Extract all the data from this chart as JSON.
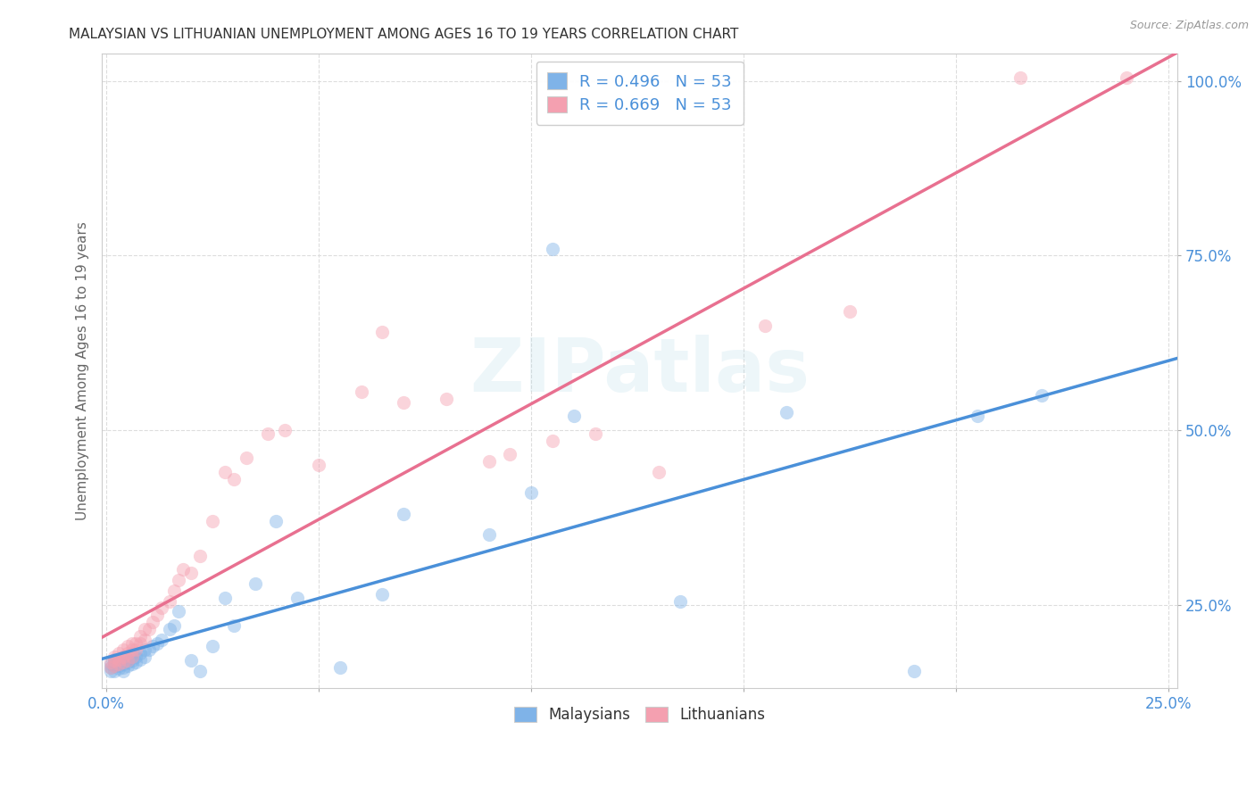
{
  "title": "MALAYSIAN VS LITHUANIAN UNEMPLOYMENT AMONG AGES 16 TO 19 YEARS CORRELATION CHART",
  "source": "Source: ZipAtlas.com",
  "ylabel": "Unemployment Among Ages 16 to 19 years",
  "xlim": [
    -0.001,
    0.252
  ],
  "ylim": [
    0.13,
    1.04
  ],
  "xtick_positions": [
    0.0,
    0.05,
    0.1,
    0.15,
    0.2,
    0.25
  ],
  "xtick_labels": [
    "0.0%",
    "",
    "",
    "",
    "",
    "25.0%"
  ],
  "ytick_positions": [
    0.25,
    0.5,
    0.75,
    1.0
  ],
  "ytick_labels": [
    "25.0%",
    "50.0%",
    "75.0%",
    "100.0%"
  ],
  "legend_label_blue_r": "R = 0.496",
  "legend_label_blue_n": "N = 53",
  "legend_label_pink_r": "R = 0.669",
  "legend_label_pink_n": "N = 53",
  "legend_label_malaysians": "Malaysians",
  "legend_label_lithuanians": "Lithuanians",
  "blue_color": "#7fb3e8",
  "pink_color": "#f4a0b0",
  "blue_line_color": "#4a90d9",
  "pink_line_color": "#e87090",
  "legend_text_color": "#4a90d9",
  "title_color": "#333333",
  "grid_color": "#dddddd",
  "background_color": "#ffffff",
  "watermark": "ZIPatlas",
  "marker_size": 120,
  "marker_alpha": 0.45,
  "line_width": 2.5,
  "blue_scatter_x": [
    0.001,
    0.001,
    0.001,
    0.002,
    0.002,
    0.002,
    0.002,
    0.003,
    0.003,
    0.003,
    0.004,
    0.004,
    0.004,
    0.004,
    0.005,
    0.005,
    0.005,
    0.006,
    0.006,
    0.006,
    0.007,
    0.007,
    0.008,
    0.008,
    0.009,
    0.009,
    0.01,
    0.011,
    0.012,
    0.013,
    0.015,
    0.016,
    0.017,
    0.02,
    0.022,
    0.025,
    0.028,
    0.03,
    0.035,
    0.04,
    0.045,
    0.055,
    0.065,
    0.07,
    0.09,
    0.1,
    0.105,
    0.11,
    0.135,
    0.16,
    0.19,
    0.205,
    0.22
  ],
  "blue_scatter_y": [
    0.155,
    0.16,
    0.165,
    0.155,
    0.162,
    0.168,
    0.172,
    0.158,
    0.163,
    0.17,
    0.155,
    0.16,
    0.165,
    0.175,
    0.162,
    0.168,
    0.172,
    0.165,
    0.17,
    0.18,
    0.168,
    0.175,
    0.172,
    0.18,
    0.175,
    0.185,
    0.185,
    0.19,
    0.195,
    0.2,
    0.215,
    0.22,
    0.24,
    0.17,
    0.155,
    0.19,
    0.26,
    0.22,
    0.28,
    0.37,
    0.26,
    0.16,
    0.265,
    0.38,
    0.35,
    0.41,
    0.76,
    0.52,
    0.255,
    0.525,
    0.155,
    0.52,
    0.55
  ],
  "pink_scatter_x": [
    0.001,
    0.001,
    0.002,
    0.002,
    0.002,
    0.003,
    0.003,
    0.003,
    0.004,
    0.004,
    0.004,
    0.005,
    0.005,
    0.005,
    0.006,
    0.006,
    0.006,
    0.007,
    0.007,
    0.008,
    0.008,
    0.009,
    0.009,
    0.01,
    0.011,
    0.012,
    0.013,
    0.015,
    0.016,
    0.017,
    0.018,
    0.02,
    0.022,
    0.025,
    0.028,
    0.03,
    0.033,
    0.038,
    0.042,
    0.05,
    0.06,
    0.065,
    0.07,
    0.08,
    0.09,
    0.095,
    0.105,
    0.115,
    0.13,
    0.155,
    0.175,
    0.215,
    0.24
  ],
  "pink_scatter_y": [
    0.16,
    0.168,
    0.162,
    0.17,
    0.175,
    0.165,
    0.172,
    0.18,
    0.168,
    0.175,
    0.185,
    0.17,
    0.18,
    0.19,
    0.175,
    0.185,
    0.195,
    0.185,
    0.195,
    0.195,
    0.205,
    0.2,
    0.215,
    0.215,
    0.225,
    0.235,
    0.245,
    0.255,
    0.27,
    0.285,
    0.3,
    0.295,
    0.32,
    0.37,
    0.44,
    0.43,
    0.46,
    0.495,
    0.5,
    0.45,
    0.555,
    0.64,
    0.54,
    0.545,
    0.455,
    0.465,
    0.485,
    0.495,
    0.44,
    0.65,
    0.67,
    1.005,
    1.005
  ]
}
